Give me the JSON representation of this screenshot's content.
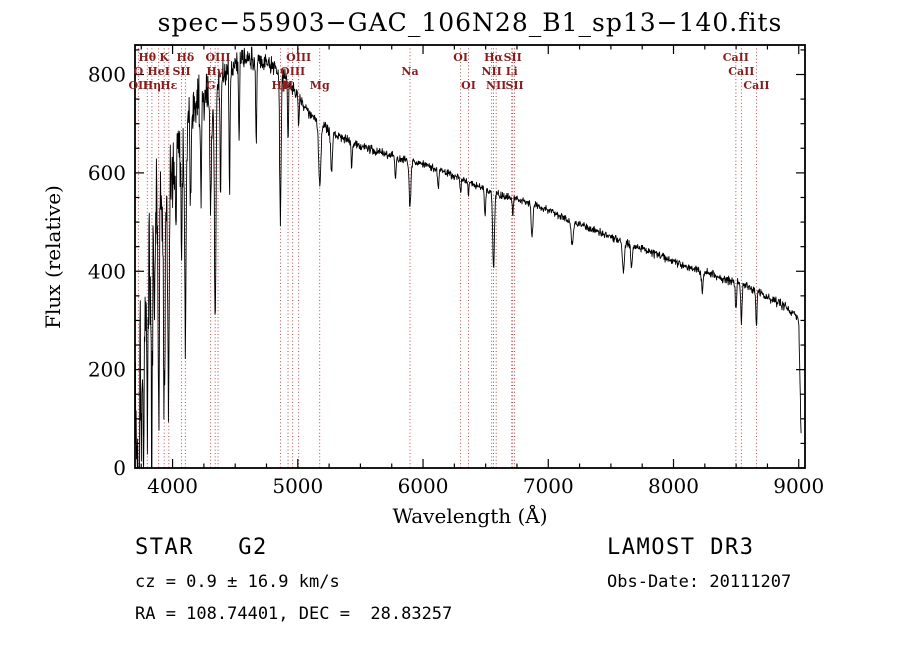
{
  "chart_data": {
    "type": "line",
    "title": "spec−55903−GAC_106N28_B1_sp13−140.fits",
    "xlabel": "Wavelength (Å)",
    "ylabel": "Flux (relative)",
    "xlim": [
      3700,
      9050
    ],
    "ylim": [
      0,
      860
    ],
    "xticks": [
      4000,
      5000,
      6000,
      7000,
      8000,
      9000
    ],
    "x_minor_start": 3750,
    "x_minor_step": 250,
    "yticks": [
      0,
      200,
      400,
      600,
      800
    ],
    "y_minor_step": 50,
    "wavelength_range": [
      3700,
      9020
    ],
    "sample_step": 3,
    "noise_seed": 20111207,
    "grid": false,
    "legend": false,
    "line_color": "#000000",
    "marker_color": "#b03535",
    "label_color": "#8b1c1c",
    "continuum": [
      [
        3700,
        210
      ],
      [
        3740,
        330
      ],
      [
        3780,
        420
      ],
      [
        3820,
        470
      ],
      [
        3860,
        500
      ],
      [
        3900,
        530
      ],
      [
        3950,
        570
      ],
      [
        4000,
        615
      ],
      [
        4060,
        650
      ],
      [
        4120,
        690
      ],
      [
        4180,
        725
      ],
      [
        4240,
        745
      ],
      [
        4300,
        762
      ],
      [
        4360,
        780
      ],
      [
        4420,
        800
      ],
      [
        4480,
        815
      ],
      [
        4550,
        828
      ],
      [
        4620,
        833
      ],
      [
        4700,
        828
      ],
      [
        4780,
        818
      ],
      [
        4860,
        808
      ],
      [
        4940,
        780
      ],
      [
        5000,
        755
      ],
      [
        5080,
        725
      ],
      [
        5160,
        705
      ],
      [
        5240,
        688
      ],
      [
        5320,
        676
      ],
      [
        5400,
        667
      ],
      [
        5500,
        655
      ],
      [
        5600,
        646
      ],
      [
        5700,
        638
      ],
      [
        5800,
        631
      ],
      [
        5900,
        624
      ],
      [
        6000,
        617
      ],
      [
        6100,
        608
      ],
      [
        6200,
        599
      ],
      [
        6300,
        589
      ],
      [
        6400,
        578
      ],
      [
        6500,
        566
      ],
      [
        6600,
        556
      ],
      [
        6700,
        549
      ],
      [
        6800,
        543
      ],
      [
        6900,
        535
      ],
      [
        7000,
        524
      ],
      [
        7100,
        512
      ],
      [
        7200,
        500
      ],
      [
        7300,
        490
      ],
      [
        7400,
        480
      ],
      [
        7500,
        470
      ],
      [
        7600,
        460
      ],
      [
        7700,
        450
      ],
      [
        7800,
        440
      ],
      [
        7900,
        430
      ],
      [
        8000,
        420
      ],
      [
        8100,
        410
      ],
      [
        8200,
        402
      ],
      [
        8300,
        394
      ],
      [
        8400,
        386
      ],
      [
        8500,
        377
      ],
      [
        8600,
        367
      ],
      [
        8700,
        354
      ],
      [
        8800,
        341
      ],
      [
        8900,
        327
      ],
      [
        8950,
        318
      ],
      [
        9000,
        302
      ],
      [
        9012,
        150
      ],
      [
        9020,
        55
      ]
    ],
    "absorption_lines": [
      [
        3712,
        180,
        4
      ],
      [
        3722,
        220,
        4
      ],
      [
        3727,
        260,
        5
      ],
      [
        3734,
        300,
        4
      ],
      [
        3750,
        330,
        4
      ],
      [
        3762,
        280,
        4
      ],
      [
        3770,
        320,
        4
      ],
      [
        3798,
        380,
        5
      ],
      [
        3820,
        200,
        4
      ],
      [
        3835,
        420,
        5
      ],
      [
        3856,
        180,
        4
      ],
      [
        3889,
        440,
        5
      ],
      [
        3933,
        470,
        6
      ],
      [
        3968,
        480,
        6
      ],
      [
        4026,
        180,
        4
      ],
      [
        4072,
        200,
        4
      ],
      [
        4102,
        430,
        6
      ],
      [
        4144,
        160,
        4
      ],
      [
        4227,
        200,
        4
      ],
      [
        4304,
        230,
        7
      ],
      [
        4340,
        480,
        6
      ],
      [
        4383,
        260,
        4
      ],
      [
        4455,
        220,
        4
      ],
      [
        4531,
        170,
        4
      ],
      [
        4668,
        160,
        4
      ],
      [
        4861,
        300,
        6
      ],
      [
        4922,
        120,
        4
      ],
      [
        5007,
        60,
        4
      ],
      [
        5175,
        130,
        9
      ],
      [
        5270,
        80,
        7
      ],
      [
        5430,
        50,
        5
      ],
      [
        5780,
        40,
        5
      ],
      [
        5896,
        95,
        7
      ],
      [
        6122,
        40,
        5
      ],
      [
        6300,
        35,
        4
      ],
      [
        6363,
        30,
        4
      ],
      [
        6495,
        50,
        5
      ],
      [
        6563,
        150,
        7
      ],
      [
        6717,
        35,
        4
      ],
      [
        6870,
        65,
        7
      ],
      [
        7190,
        45,
        8
      ],
      [
        7600,
        60,
        8
      ],
      [
        7665,
        45,
        6
      ],
      [
        8230,
        40,
        6
      ],
      [
        8498,
        55,
        5
      ],
      [
        8542,
        75,
        5
      ],
      [
        8662,
        65,
        5
      ]
    ],
    "noise_profile": [
      [
        3700,
        200
      ],
      [
        3780,
        170
      ],
      [
        3860,
        150
      ],
      [
        3950,
        130
      ],
      [
        4050,
        100
      ],
      [
        4200,
        70
      ],
      [
        4400,
        45
      ],
      [
        4600,
        30
      ],
      [
        4800,
        22
      ],
      [
        5000,
        16
      ],
      [
        5300,
        12
      ],
      [
        5800,
        10
      ],
      [
        6500,
        9
      ],
      [
        7500,
        9
      ],
      [
        8500,
        11
      ],
      [
        9020,
        12
      ]
    ],
    "spectral_lines": [
      [
        "Hθ",
        3798,
        1
      ],
      [
        "K",
        3933,
        1
      ],
      [
        "Hδ",
        4102,
        1
      ],
      [
        "OIII",
        4363,
        1
      ],
      [
        "OIII",
        5007,
        1
      ],
      [
        "OI",
        6300,
        1
      ],
      [
        "Hα",
        6563,
        1
      ],
      [
        "SII",
        6716,
        1
      ],
      [
        "CaII",
        8498,
        1
      ],
      [
        "O",
        3727,
        2
      ],
      [
        "HeI",
        3889,
        2
      ],
      [
        "SII",
        4072,
        2
      ],
      [
        "Hγ",
        4340,
        2
      ],
      [
        "OIII",
        4959,
        2
      ],
      [
        "Na",
        5896,
        2
      ],
      [
        "NII",
        6548,
        2
      ],
      [
        "Li",
        6708,
        2
      ],
      [
        "CaII",
        8542,
        2
      ],
      [
        "OII",
        3727,
        3
      ],
      [
        "Hη",
        3835,
        3
      ],
      [
        "Hε",
        3970,
        3
      ],
      [
        "G",
        4304,
        3
      ],
      [
        "Hβ",
        4861,
        3
      ],
      [
        "H",
        4922,
        3
      ],
      [
        "Mg",
        5175,
        3
      ],
      [
        "OI",
        6363,
        3
      ],
      [
        "NII",
        6584,
        3
      ],
      [
        "SII",
        6731,
        3
      ],
      [
        "CaII",
        8662,
        3
      ]
    ]
  },
  "footer": {
    "class_label": "STAR   G2",
    "cz_label": "cz = 0.9 ± 16.9 km/s",
    "radec_label": "RA = 108.74401, DEC =  28.83257",
    "survey_label": "LAMOST DR3",
    "obsdate_label": "Obs-Date: 20111207"
  }
}
